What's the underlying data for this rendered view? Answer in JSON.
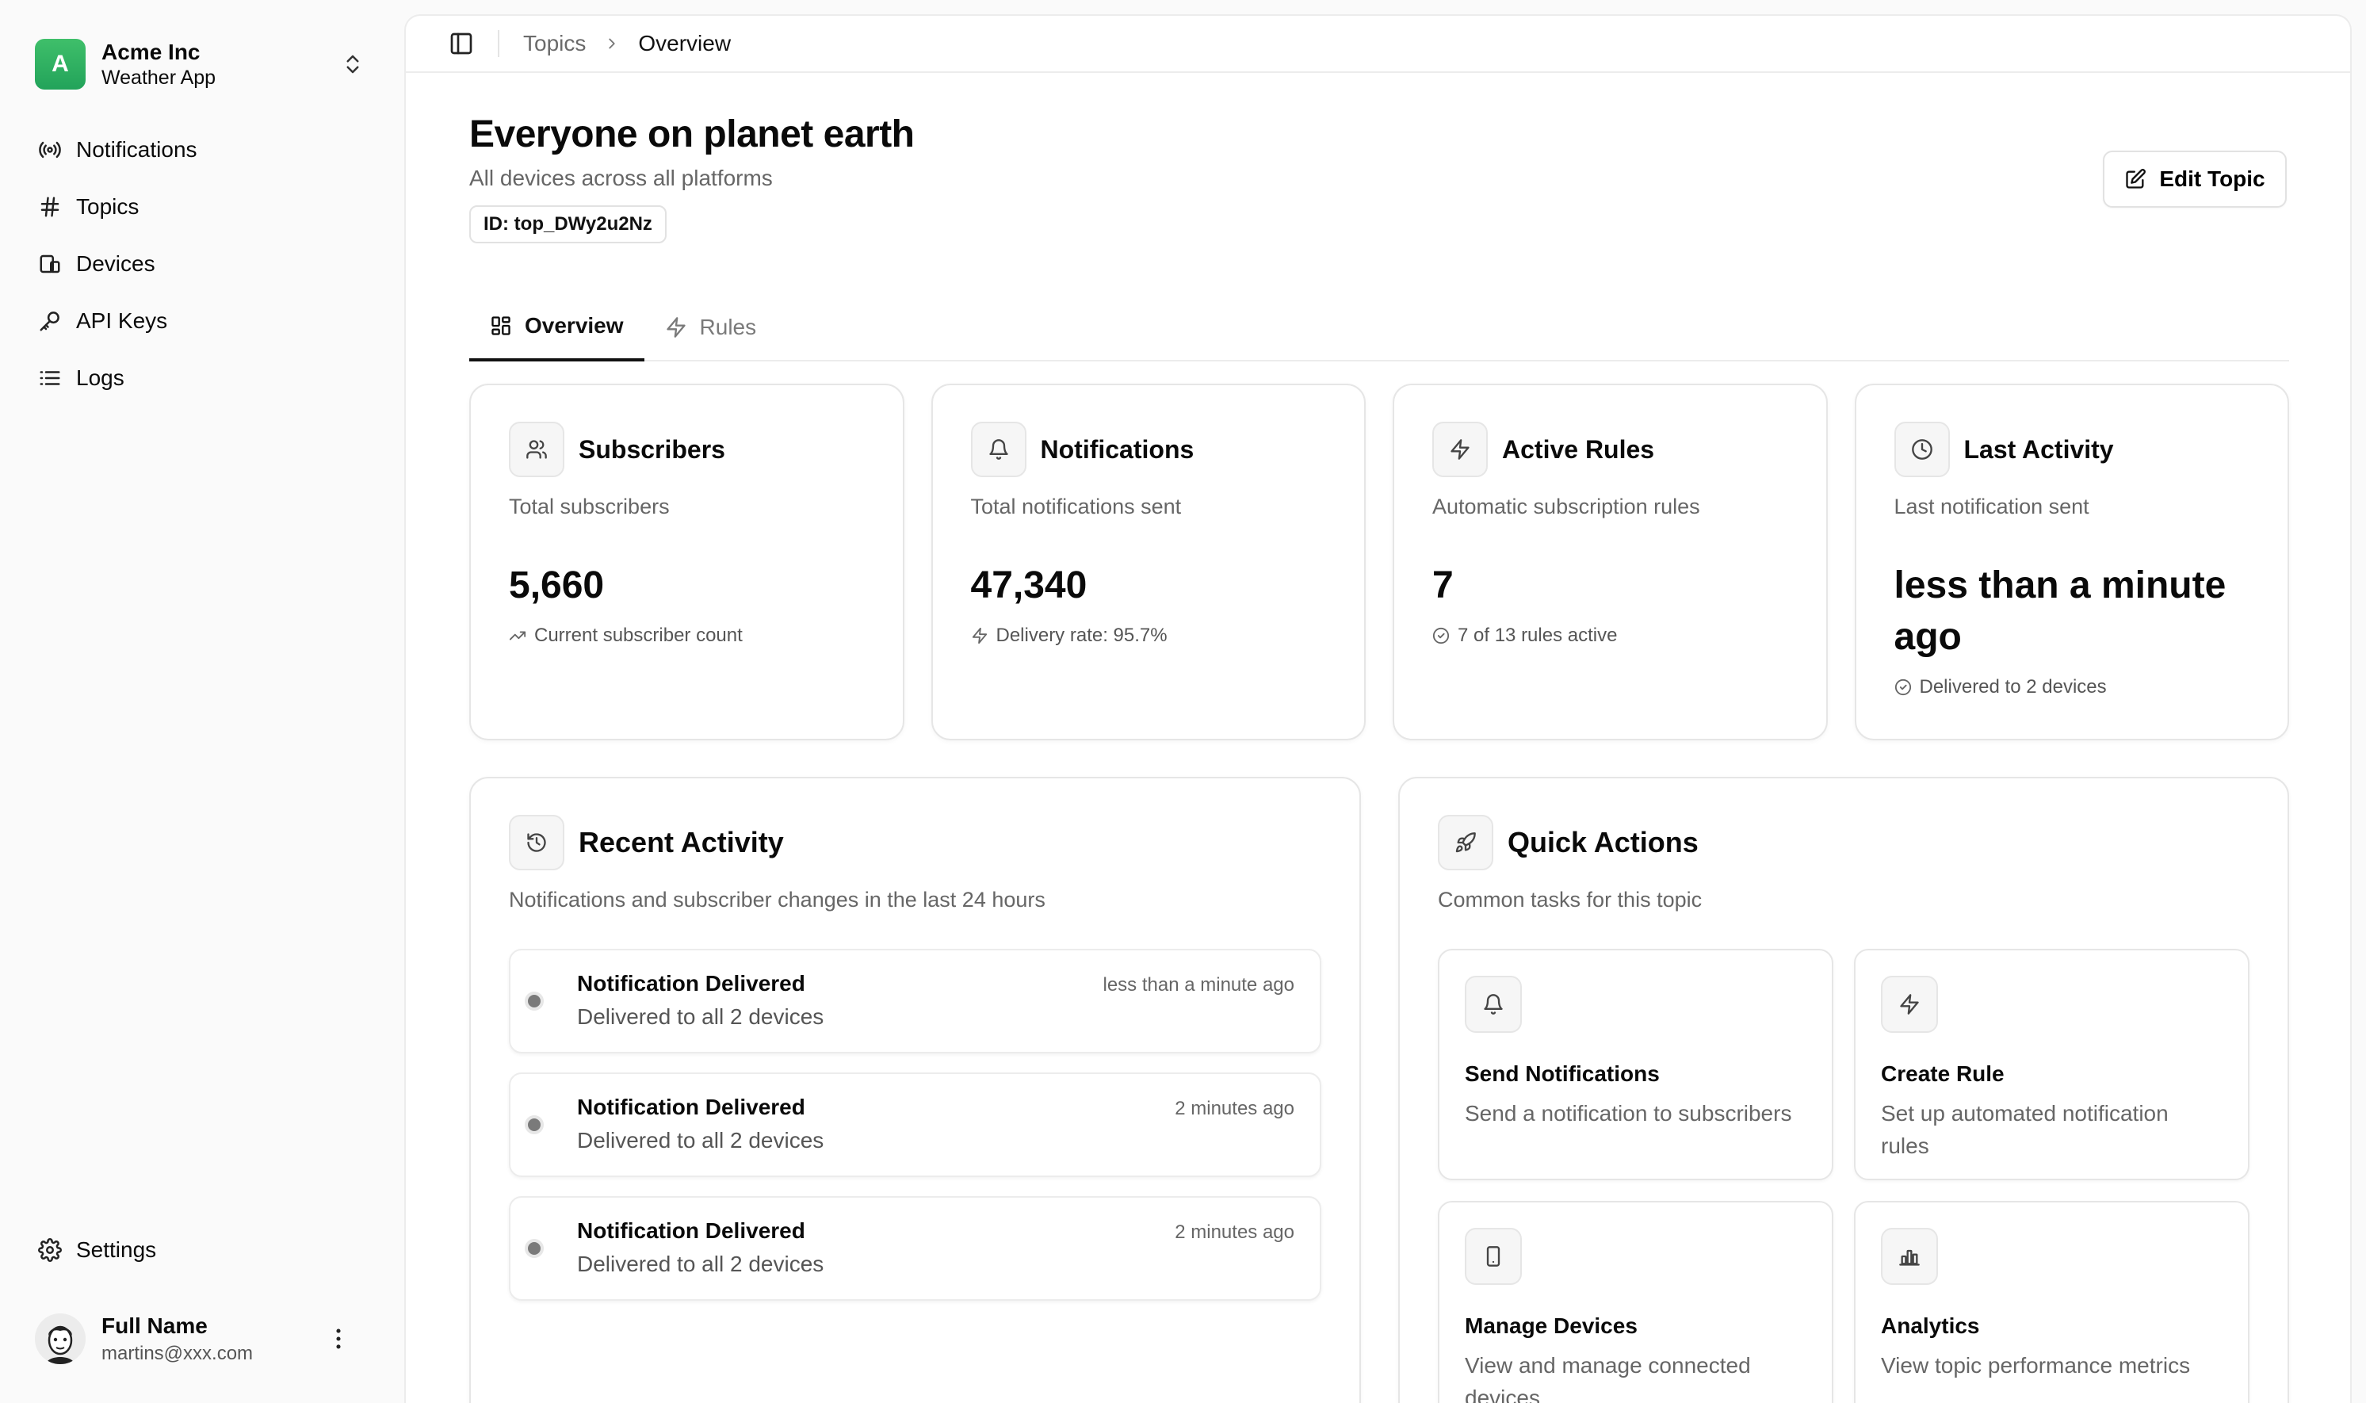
{
  "team": {
    "logo_letter": "A",
    "name": "Acme Inc",
    "plan": "Weather App"
  },
  "nav": {
    "items": [
      {
        "label": "Notifications",
        "icon": "broadcast-icon"
      },
      {
        "label": "Topics",
        "icon": "hash-icon"
      },
      {
        "label": "Devices",
        "icon": "devices-icon"
      },
      {
        "label": "API Keys",
        "icon": "key-icon"
      },
      {
        "label": "Logs",
        "icon": "list-icon"
      }
    ],
    "settings_label": "Settings"
  },
  "user": {
    "name": "Full Name",
    "email": "martins@xxx.com"
  },
  "breadcrumb": {
    "parent": "Topics",
    "current": "Overview"
  },
  "page": {
    "title": "Everyone on planet earth",
    "subtitle": "All devices across all platforms",
    "id_badge": "ID: top_DWy2u2Nz",
    "edit_label": "Edit Topic"
  },
  "tabs": [
    {
      "label": "Overview",
      "active": true
    },
    {
      "label": "Rules",
      "active": false
    }
  ],
  "stats": [
    {
      "title": "Subscribers",
      "desc": "Total subscribers",
      "value": "5,660",
      "foot": "Current subscriber count",
      "icon": "users-icon"
    },
    {
      "title": "Notifications",
      "desc": "Total notifications sent",
      "value": "47,340",
      "foot": "Delivery rate: 95.7%",
      "icon": "bell-icon"
    },
    {
      "title": "Active Rules",
      "desc": "Automatic subscription rules",
      "value": "7",
      "foot": "7 of 13 rules active",
      "icon": "zap-icon"
    },
    {
      "title": "Last Activity",
      "desc": "Last notification sent",
      "value": "less than a minute ago",
      "foot": "Delivered to 2 devices",
      "icon": "clock-icon"
    }
  ],
  "activity": {
    "title": "Recent Activity",
    "desc": "Notifications and subscriber changes in the last 24 hours",
    "items": [
      {
        "title": "Notification Delivered",
        "desc": "Delivered to all 2 devices",
        "time": "less than a minute ago"
      },
      {
        "title": "Notification Delivered",
        "desc": "Delivered to all 2 devices",
        "time": "2 minutes ago"
      },
      {
        "title": "Notification Delivered",
        "desc": "Delivered to all 2 devices",
        "time": "2 minutes ago"
      }
    ]
  },
  "quick_actions": {
    "title": "Quick Actions",
    "desc": "Common tasks for this topic",
    "items": [
      {
        "title": "Send Notifications",
        "desc": "Send a notification to subscribers",
        "icon": "bell-icon"
      },
      {
        "title": "Create Rule",
        "desc": "Set up automated notification rules",
        "icon": "zap-icon"
      },
      {
        "title": "Manage Devices",
        "desc": "View and manage connected devices",
        "icon": "smartphone-icon"
      },
      {
        "title": "Analytics",
        "desc": "View topic performance metrics",
        "icon": "bar-chart-icon"
      }
    ]
  },
  "colors": {
    "brand": "#2fb262",
    "accent": "#0a0a0a",
    "muted": "#666666",
    "border": "#e6e6e6"
  }
}
